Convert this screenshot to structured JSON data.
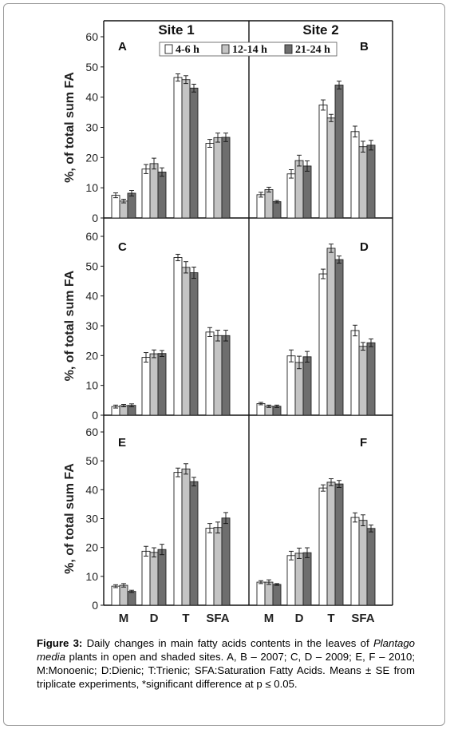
{
  "chart_data": {
    "type": "bar",
    "sites": [
      "Site 1",
      "Site 2"
    ],
    "categories": [
      "M",
      "D",
      "T",
      "SFA"
    ],
    "series_names": [
      "4-6 h",
      "12-14 h",
      "21-24 h"
    ],
    "series_colors": [
      "#ffffff",
      "#c4c4c4",
      "#6e6e6e"
    ],
    "ylabel": "%, of total sum FA",
    "ylim": [
      0,
      60
    ],
    "yticks": [
      0,
      10,
      20,
      30,
      40,
      50,
      60
    ],
    "legend_position": "top",
    "panels": [
      {
        "label": "A",
        "values": [
          [
            7.5,
            16.2,
            46.5,
            24.7
          ],
          [
            5.6,
            18.0,
            45.8,
            26.6
          ],
          [
            8.2,
            15.2,
            43.0,
            26.7
          ]
        ],
        "errors": [
          [
            0.8,
            1.5,
            1.2,
            1.3
          ],
          [
            0.6,
            1.8,
            1.3,
            1.5
          ],
          [
            0.9,
            1.4,
            1.3,
            1.4
          ]
        ]
      },
      {
        "label": "B",
        "values": [
          [
            7.7,
            14.6,
            37.4,
            28.6
          ],
          [
            9.4,
            19.0,
            33.1,
            23.6
          ],
          [
            5.4,
            17.2,
            44.0,
            24.1
          ]
        ],
        "errors": [
          [
            0.8,
            1.4,
            1.7,
            1.8
          ],
          [
            0.8,
            1.8,
            1.2,
            1.8
          ],
          [
            0.4,
            1.7,
            1.3,
            1.6
          ]
        ]
      },
      {
        "label": "C",
        "values": [
          [
            2.9,
            19.4,
            52.9,
            27.9
          ],
          [
            3.2,
            20.6,
            49.6,
            26.7
          ],
          [
            3.3,
            20.7,
            47.8,
            26.7
          ]
        ],
        "errors": [
          [
            0.5,
            1.6,
            1.1,
            1.5
          ],
          [
            0.4,
            1.3,
            1.9,
            1.8
          ],
          [
            0.5,
            1.0,
            1.9,
            1.8
          ]
        ]
      },
      {
        "label": "D",
        "values": [
          [
            3.9,
            19.9,
            47.4,
            28.4
          ],
          [
            3.0,
            17.7,
            56.0,
            23.1
          ],
          [
            3.0,
            19.6,
            52.2,
            24.3
          ]
        ],
        "errors": [
          [
            0.4,
            2.0,
            1.6,
            1.8
          ],
          [
            0.4,
            2.1,
            1.4,
            1.3
          ],
          [
            0.4,
            1.8,
            1.2,
            1.3
          ]
        ]
      },
      {
        "label": "E",
        "values": [
          [
            6.6,
            18.7,
            46.0,
            26.7
          ],
          [
            6.9,
            18.3,
            47.2,
            26.9
          ],
          [
            4.8,
            19.3,
            42.8,
            30.2
          ]
        ],
        "errors": [
          [
            0.5,
            1.7,
            1.5,
            1.6
          ],
          [
            0.6,
            1.6,
            1.8,
            1.9
          ],
          [
            0.4,
            1.8,
            1.5,
            1.9
          ]
        ]
      },
      {
        "label": "F",
        "values": [
          [
            8.0,
            17.2,
            40.6,
            30.4
          ],
          [
            8.0,
            18.0,
            42.6,
            29.4
          ],
          [
            7.2,
            18.2,
            42.0,
            26.6
          ]
        ],
        "errors": [
          [
            0.5,
            1.5,
            1.1,
            1.6
          ],
          [
            0.8,
            1.8,
            1.2,
            1.9
          ],
          [
            0.3,
            1.7,
            1.2,
            1.2
          ]
        ]
      }
    ]
  },
  "caption": {
    "label": "Figure 3:",
    "text_before": " Daily changes in main fatty acids contents in the leaves of ",
    "species": "Plantago media",
    "text_after": " plants in open and shaded sites. A, B – 2007; C, D – 2009; E, F – 2010; M:Monoenic; D:Dienic; T:Trienic; SFA:Saturation Fatty Acids. Means ± SE from triplicate experiments, *significant difference at p ≤ 0.05."
  }
}
